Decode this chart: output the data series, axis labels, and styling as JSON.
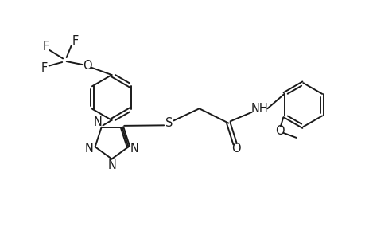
{
  "bg_color": "#ffffff",
  "line_color": "#1a1a1a",
  "line_width": 1.4,
  "font_size": 10.5,
  "figsize": [
    4.6,
    3.0
  ],
  "dpi": 100,
  "xlim": [
    0,
    10
  ],
  "ylim": [
    0,
    6.5
  ]
}
